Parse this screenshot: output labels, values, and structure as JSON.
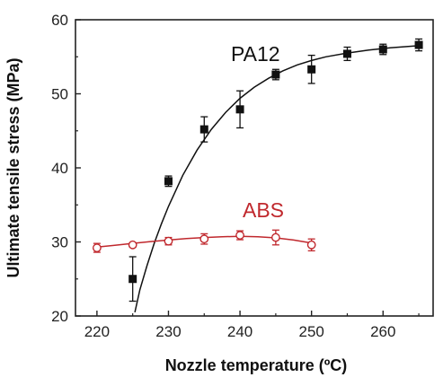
{
  "chart_data": {
    "type": "scatter",
    "xlabel": "Nozzle temperature (ºC)",
    "ylabel": "Ultimate tensile stress (MPa)",
    "xlim": [
      217,
      267
    ],
    "ylim": [
      20,
      60
    ],
    "xticks": [
      220,
      230,
      240,
      250,
      260
    ],
    "yticks": [
      20,
      30,
      40,
      50,
      60
    ],
    "grid": false,
    "legend": "labels placed next to series",
    "series": [
      {
        "name": "PA12",
        "color": "#111111",
        "marker": "filled-square",
        "x": [
          225,
          230,
          235,
          240,
          245,
          250,
          255,
          260,
          265
        ],
        "y": [
          25.0,
          38.2,
          45.2,
          47.9,
          52.6,
          53.3,
          55.4,
          56.0,
          56.6
        ],
        "error": [
          3.0,
          0.7,
          1.7,
          2.5,
          0.7,
          1.9,
          0.9,
          0.7,
          0.8
        ],
        "fit": [
          [
            225.3,
            20.5
          ],
          [
            226,
            23.5
          ],
          [
            227,
            26.8
          ],
          [
            228,
            29.8
          ],
          [
            229,
            32.4
          ],
          [
            230,
            34.8
          ],
          [
            232,
            39.0
          ],
          [
            234,
            42.4
          ],
          [
            236,
            45.2
          ],
          [
            238,
            47.5
          ],
          [
            240,
            49.4
          ],
          [
            242,
            50.9
          ],
          [
            244,
            52.1
          ],
          [
            246,
            53.1
          ],
          [
            248,
            53.9
          ],
          [
            250,
            54.5
          ],
          [
            252,
            55.0
          ],
          [
            255,
            55.5
          ],
          [
            258,
            55.9
          ],
          [
            261,
            56.2
          ],
          [
            265,
            56.5
          ]
        ]
      },
      {
        "name": "ABS",
        "color": "#c0282d",
        "marker": "open-circle",
        "x": [
          220,
          225,
          230,
          235,
          240,
          245,
          250
        ],
        "y": [
          29.2,
          29.6,
          30.1,
          30.4,
          30.9,
          30.6,
          29.6
        ],
        "error": [
          0.6,
          0.3,
          0.5,
          0.7,
          0.6,
          1.0,
          0.8
        ],
        "fit": [
          [
            220,
            29.3
          ],
          [
            222.5,
            29.55
          ],
          [
            225,
            29.8
          ],
          [
            227.5,
            30.05
          ],
          [
            230,
            30.25
          ],
          [
            232.5,
            30.45
          ],
          [
            235,
            30.6
          ],
          [
            237.5,
            30.7
          ],
          [
            240,
            30.75
          ],
          [
            242.5,
            30.7
          ],
          [
            245,
            30.55
          ],
          [
            247.5,
            30.25
          ],
          [
            250,
            29.85
          ]
        ]
      }
    ]
  }
}
